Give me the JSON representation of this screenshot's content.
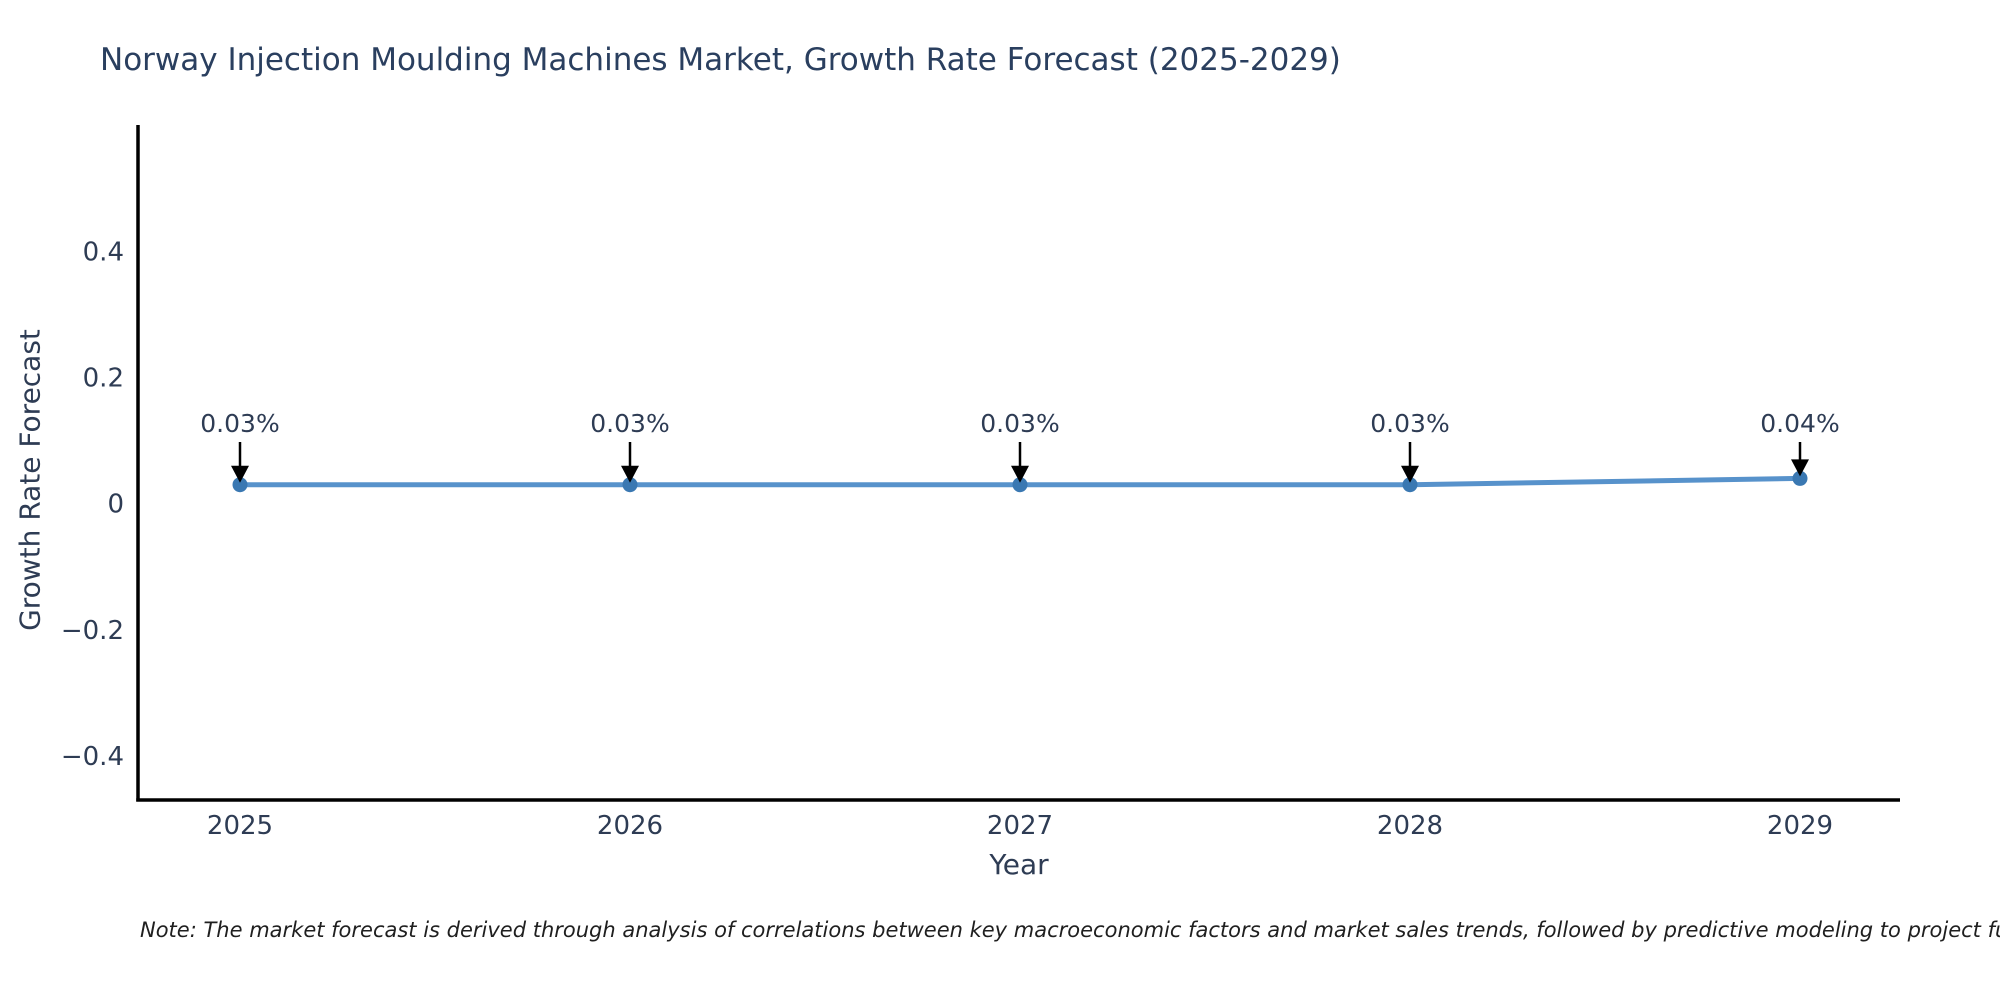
{
  "title": "Norway Injection Moulding Machines Market, Growth Rate Forecast (2025-2029)",
  "note": "Note: The market forecast is derived through analysis of correlations between key macroeconomic factors and market sales trends, followed by predictive modeling to project future sa",
  "colors": {
    "title": "#2a3f5f",
    "tick": "#2e3c54",
    "axis_spine": "#000000",
    "line": "#4e8cc8",
    "marker": "#3a78b2",
    "arrow": "#000000",
    "annotation_text": "#2e3c54",
    "note_text": "#1f1f1f",
    "background": "#ffffff"
  },
  "chart_data": {
    "type": "line",
    "title": "Norway Injection Moulding Machines Market, Growth Rate Forecast (2025-2029)",
    "x": [
      2025,
      2026,
      2027,
      2028,
      2029
    ],
    "series": [
      {
        "name": "Growth Rate Forecast",
        "values": [
          0.03,
          0.03,
          0.03,
          0.03,
          0.04
        ]
      }
    ],
    "point_labels": [
      "0.03%",
      "0.03%",
      "0.03%",
      "0.03%",
      "0.04%"
    ],
    "xlabel": "Year",
    "ylabel": "Growth Rate Forecast",
    "xtick_labels": [
      "2025",
      "2026",
      "2027",
      "2028",
      "2029"
    ],
    "yticks": [
      0.4,
      0.2,
      0,
      -0.2,
      -0.4
    ],
    "ytick_labels": [
      "0.4",
      "0.2",
      "0",
      "−0.2",
      "−0.4"
    ],
    "ylim": [
      -0.47,
      0.545
    ],
    "grid": false,
    "legend": false,
    "annotation_note": "Note: The market forecast is derived through analysis of correlations between key macroeconomic factors and market sales trends, followed by predictive modeling to project future sa"
  }
}
